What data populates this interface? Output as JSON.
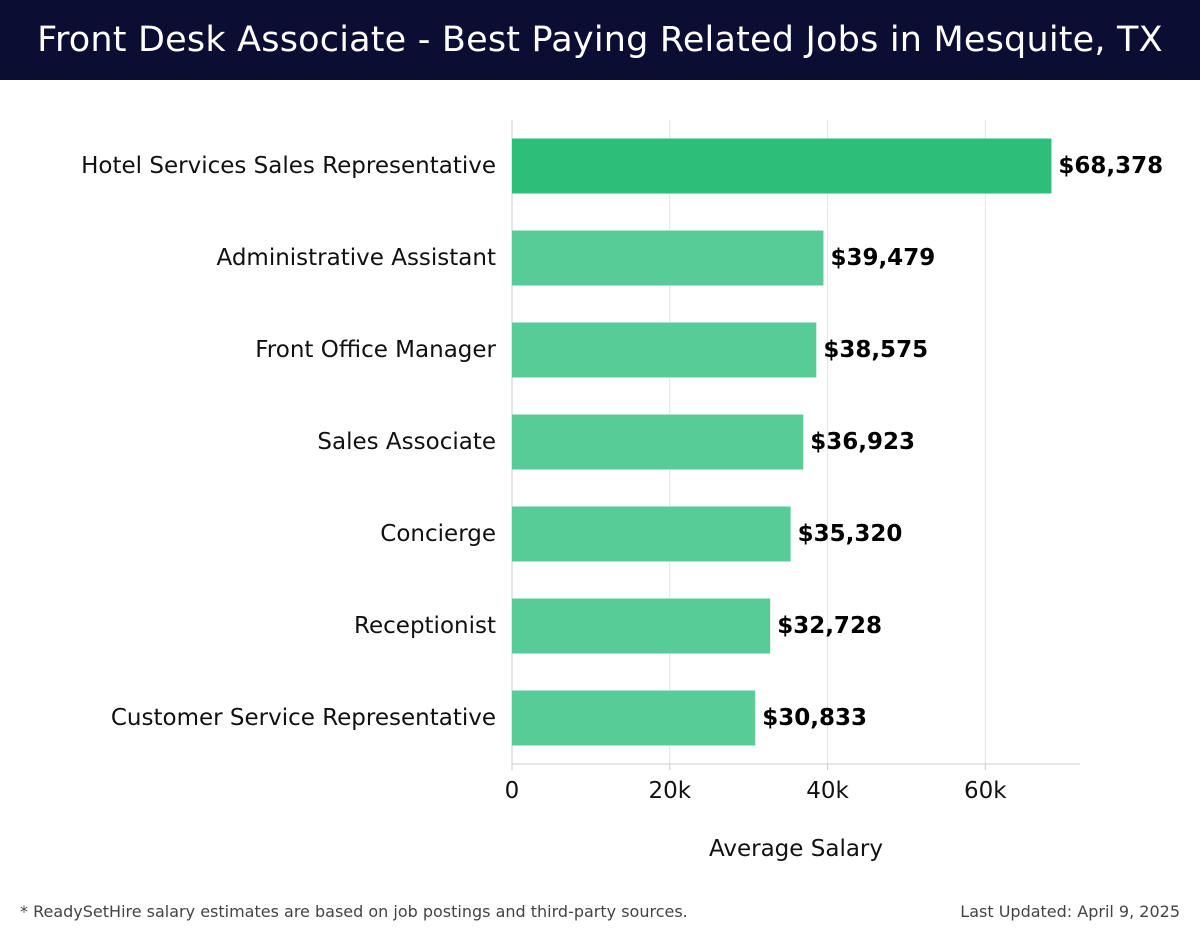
{
  "header": {
    "title": "Front Desk Associate - Best Paying Related Jobs in Mesquite, TX"
  },
  "chart_data": {
    "type": "bar",
    "orientation": "horizontal",
    "categories": [
      "Hotel Services Sales Representative",
      "Administrative Assistant",
      "Front Office Manager",
      "Sales Associate",
      "Concierge",
      "Receptionist",
      "Customer Service Representative"
    ],
    "values": [
      68378,
      39479,
      38575,
      36923,
      35320,
      32728,
      30833
    ],
    "data_labels": [
      "$68,378",
      "$39,479",
      "$38,575",
      "$36,923",
      "$35,320",
      "$32,728",
      "$30,833"
    ],
    "xlabel": "Average Salary",
    "ylabel": "",
    "xlim": [
      0,
      72000
    ],
    "x_ticks": [
      0,
      20000,
      40000,
      60000
    ],
    "x_tick_labels": [
      "0",
      "20k",
      "40k",
      "60k"
    ],
    "grid": "vertical",
    "colors": {
      "highlight": "#2bbf7a",
      "bar": "#57cc96",
      "grid": "#e3e3e3",
      "axis": "#cccccc"
    }
  },
  "footer": {
    "note": "* ReadySetHire salary estimates are based on job postings and third-party sources.",
    "updated": "Last Updated: April 9, 2025"
  }
}
